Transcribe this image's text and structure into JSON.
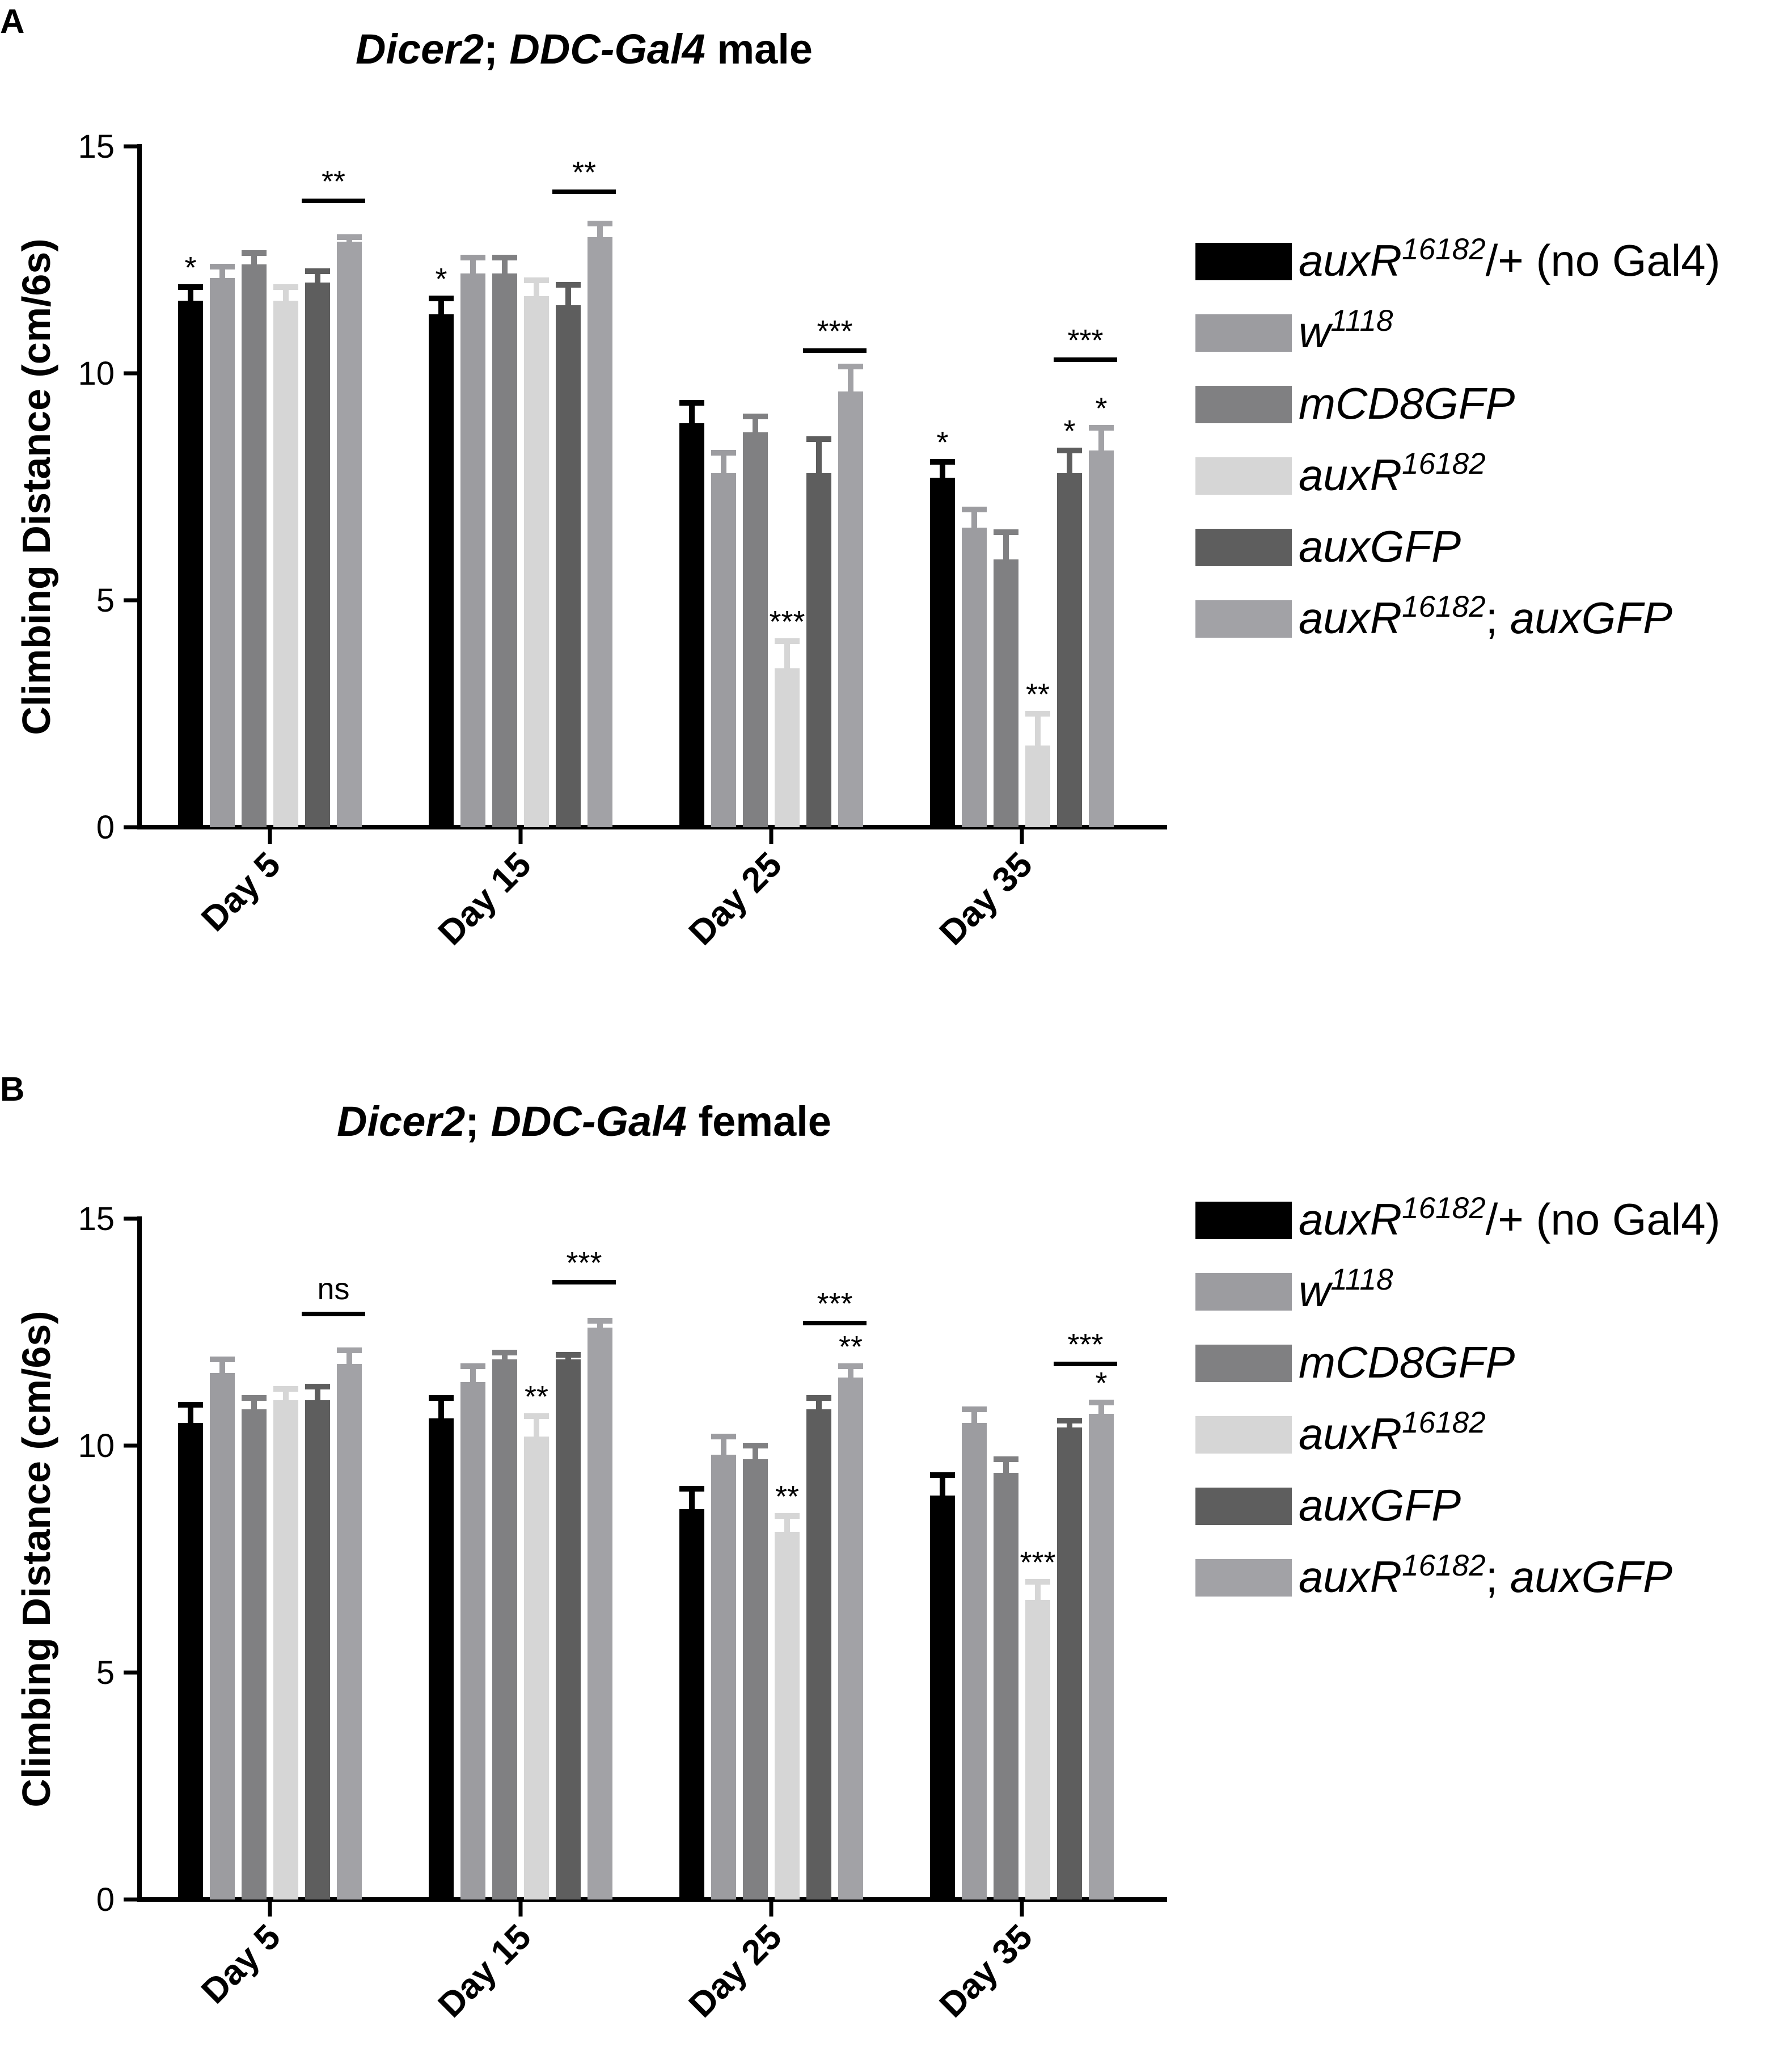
{
  "colors": {
    "auxR_no_gal4": "#000000",
    "w1118": "#9c9ca0",
    "mCD8GFP": "#808082",
    "auxR": "#d6d6d6",
    "auxGFP": "#5e5e5e",
    "auxR_auxGFP": "#a2a2a6"
  },
  "legend": [
    {
      "key": "auxR_no_gal4",
      "parts": [
        {
          "t": "auxR",
          "i": true
        },
        {
          "t": "16182",
          "i": true,
          "sup": true
        },
        {
          "t": "/+ (no Gal4)",
          "i": false
        }
      ]
    },
    {
      "key": "w1118",
      "parts": [
        {
          "t": "w",
          "i": true
        },
        {
          "t": "1118",
          "i": true,
          "sup": true
        }
      ]
    },
    {
      "key": "mCD8GFP",
      "parts": [
        {
          "t": "mCD8GFP",
          "i": true
        }
      ]
    },
    {
      "key": "auxR",
      "parts": [
        {
          "t": "auxR",
          "i": true
        },
        {
          "t": "16182",
          "i": true,
          "sup": true
        }
      ]
    },
    {
      "key": "auxGFP",
      "parts": [
        {
          "t": "auxGFP",
          "i": true
        }
      ]
    },
    {
      "key": "auxR_auxGFP",
      "parts": [
        {
          "t": "auxR",
          "i": true
        },
        {
          "t": "16182",
          "i": true,
          "sup": true
        },
        {
          "t": "; ",
          "i": false
        },
        {
          "t": "auxGFP",
          "i": true
        }
      ]
    }
  ],
  "chart_data": [
    {
      "panel": "A",
      "type": "bar",
      "title_parts": [
        {
          "t": "Dicer2",
          "i": true
        },
        {
          "t": "; ",
          "i": false
        },
        {
          "t": "DDC-Gal4",
          "i": true
        },
        {
          "t": " male",
          "i": false
        }
      ],
      "ylabel": "Climbing Distance (cm/6s)",
      "ylim": [
        0,
        15
      ],
      "yticks": [
        "0",
        "5",
        "10",
        "15"
      ],
      "categories": [
        "Day 5",
        "Day 15",
        "Day 25",
        "Day 35"
      ],
      "series": [
        {
          "key": "auxR_no_gal4",
          "name": "auxR16182/+ (no Gal4)",
          "values": [
            11.6,
            11.3,
            8.9,
            7.7
          ],
          "errors": [
            0.3,
            0.35,
            0.45,
            0.35
          ],
          "sig": [
            "*",
            "*",
            "",
            "*"
          ]
        },
        {
          "key": "w1118",
          "name": "w1118",
          "values": [
            12.1,
            12.2,
            7.8,
            6.6
          ],
          "errors": [
            0.25,
            0.35,
            0.45,
            0.4
          ],
          "sig": [
            "",
            "",
            "",
            ""
          ]
        },
        {
          "key": "mCD8GFP",
          "name": "mCD8GFP",
          "values": [
            12.4,
            12.2,
            8.7,
            5.9
          ],
          "errors": [
            0.25,
            0.35,
            0.35,
            0.6
          ],
          "sig": [
            "",
            "",
            "",
            ""
          ]
        },
        {
          "key": "auxR",
          "name": "auxR16182",
          "values": [
            11.6,
            11.7,
            3.5,
            1.8
          ],
          "errors": [
            0.3,
            0.35,
            0.6,
            0.7
          ],
          "sig": [
            "",
            "",
            "***",
            "**"
          ]
        },
        {
          "key": "auxGFP",
          "name": "auxGFP",
          "values": [
            12.0,
            11.5,
            7.8,
            7.8
          ],
          "errors": [
            0.25,
            0.45,
            0.75,
            0.5
          ],
          "sig": [
            "",
            "",
            "",
            "*"
          ]
        },
        {
          "key": "auxR_auxGFP",
          "name": "auxR16182; auxGFP",
          "values": [
            12.9,
            13.0,
            9.6,
            8.3
          ],
          "errors": [
            0.1,
            0.3,
            0.55,
            0.5
          ],
          "sig": [
            "",
            "",
            "",
            "*"
          ]
        }
      ],
      "comparisons": [
        {
          "category": 0,
          "from": 4,
          "to": 5,
          "label": "**",
          "y": 13.8
        },
        {
          "category": 1,
          "from": 4,
          "to": 5,
          "label": "**",
          "y": 14.0
        },
        {
          "category": 2,
          "from": 4,
          "to": 5,
          "label": "***",
          "y": 10.5
        },
        {
          "category": 3,
          "from": 4,
          "to": 5,
          "label": "***",
          "y": 10.3
        }
      ]
    },
    {
      "panel": "B",
      "type": "bar",
      "title_parts": [
        {
          "t": "Dicer2",
          "i": true
        },
        {
          "t": "; ",
          "i": false
        },
        {
          "t": "DDC-Gal4",
          "i": true
        },
        {
          "t": " female",
          "i": false
        }
      ],
      "ylabel": "Climbing Distance (cm/6s)",
      "ylim": [
        0,
        15
      ],
      "yticks": [
        "0",
        "5",
        "10",
        "15"
      ],
      "categories": [
        "Day 5",
        "Day 15",
        "Day 25",
        "Day 35"
      ],
      "series": [
        {
          "key": "auxR_no_gal4",
          "name": "auxR16182/+ (no Gal4)",
          "values": [
            10.5,
            10.6,
            8.6,
            8.9
          ],
          "errors": [
            0.4,
            0.45,
            0.45,
            0.45
          ],
          "sig": [
            "",
            "",
            "",
            ""
          ]
        },
        {
          "key": "w1118",
          "name": "w1118",
          "values": [
            11.6,
            11.4,
            9.8,
            10.5
          ],
          "errors": [
            0.3,
            0.35,
            0.4,
            0.3
          ],
          "sig": [
            "",
            "",
            "",
            ""
          ]
        },
        {
          "key": "mCD8GFP",
          "name": "mCD8GFP",
          "values": [
            10.8,
            11.9,
            9.7,
            9.4
          ],
          "errors": [
            0.25,
            0.15,
            0.3,
            0.3
          ],
          "sig": [
            "",
            "",
            "",
            ""
          ]
        },
        {
          "key": "auxR",
          "name": "auxR16182",
          "values": [
            11.0,
            10.2,
            8.1,
            6.6
          ],
          "errors": [
            0.25,
            0.45,
            0.35,
            0.4
          ],
          "sig": [
            "",
            "**",
            "**",
            "***"
          ]
        },
        {
          "key": "auxGFP",
          "name": "auxGFP",
          "values": [
            11.0,
            11.9,
            10.8,
            10.4
          ],
          "errors": [
            0.3,
            0.1,
            0.25,
            0.15
          ],
          "sig": [
            "",
            "",
            "",
            ""
          ]
        },
        {
          "key": "auxR_auxGFP",
          "name": "auxR16182; auxGFP",
          "values": [
            11.8,
            12.6,
            11.5,
            10.7
          ],
          "errors": [
            0.3,
            0.15,
            0.25,
            0.25
          ],
          "sig": [
            "",
            "",
            "**",
            "*"
          ]
        }
      ],
      "comparisons": [
        {
          "category": 0,
          "from": 4,
          "to": 5,
          "label": "ns",
          "y": 12.9
        },
        {
          "category": 1,
          "from": 4,
          "to": 5,
          "label": "***",
          "y": 13.6
        },
        {
          "category": 2,
          "from": 4,
          "to": 5,
          "label": "***",
          "y": 12.7
        },
        {
          "category": 3,
          "from": 4,
          "to": 5,
          "label": "***",
          "y": 11.8
        }
      ]
    }
  ]
}
